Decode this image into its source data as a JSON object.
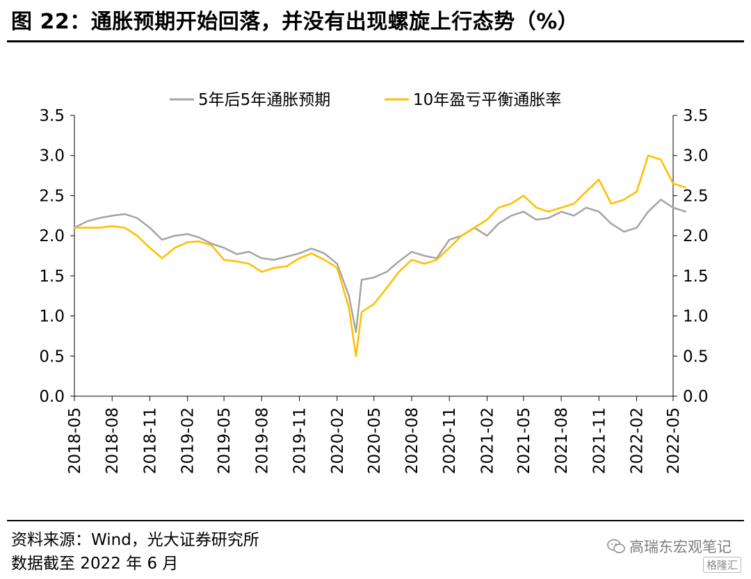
{
  "title": "图 22：通胀预期开始回落，并没有出现螺旋上行态势（%）",
  "source": "资料来源：Wind，光大证券研究所",
  "cutoff": "数据截至 2022 年 6 月",
  "watermark": "高瑞东宏观笔记",
  "watermark_icon": "wechat-icon",
  "watermark_logo": "格隆汇",
  "colors": {
    "series_5y5y": "#a6a6a6",
    "series_breakeven": "#ffc000",
    "axis": "#000000"
  },
  "chart_data": {
    "type": "line",
    "title": "",
    "xlabel": "",
    "ylabel": "",
    "ylim": [
      0,
      3.5
    ],
    "yticks": [
      "0.0",
      "0.5",
      "1.0",
      "1.5",
      "2.0",
      "2.5",
      "3.0",
      "3.5"
    ],
    "y2lim": [
      0,
      3.5
    ],
    "grid": false,
    "legend_position": "top-center",
    "xticks": [
      "2018-05",
      "2018-08",
      "2018-11",
      "2019-02",
      "2019-05",
      "2019-08",
      "2019-11",
      "2020-02",
      "2020-05",
      "2020-08",
      "2020-11",
      "2021-02",
      "2021-05",
      "2021-08",
      "2021-11",
      "2022-02",
      "2022-05"
    ],
    "series": [
      {
        "name": "5年后5年通胀预期",
        "color": "#a6a6a6",
        "x": [
          "2018-05",
          "2018-06",
          "2018-07",
          "2018-08",
          "2018-09",
          "2018-10",
          "2018-11",
          "2018-12",
          "2019-01",
          "2019-02",
          "2019-03",
          "2019-04",
          "2019-05",
          "2019-06",
          "2019-07",
          "2019-08",
          "2019-09",
          "2019-10",
          "2019-11",
          "2019-12",
          "2020-01",
          "2020-02",
          "2020-03",
          "2020-03-18",
          "2020-04",
          "2020-05",
          "2020-06",
          "2020-07",
          "2020-08",
          "2020-09",
          "2020-10",
          "2020-11",
          "2020-12",
          "2021-01",
          "2021-02",
          "2021-03",
          "2021-04",
          "2021-05",
          "2021-06",
          "2021-07",
          "2021-08",
          "2021-09",
          "2021-10",
          "2021-11",
          "2021-12",
          "2022-01",
          "2022-02",
          "2022-03",
          "2022-04",
          "2022-05",
          "2022-06"
        ],
        "values": [
          2.1,
          2.18,
          2.22,
          2.25,
          2.27,
          2.22,
          2.1,
          1.95,
          2.0,
          2.02,
          1.98,
          1.9,
          1.85,
          1.77,
          1.8,
          1.72,
          1.7,
          1.74,
          1.78,
          1.84,
          1.78,
          1.65,
          1.25,
          0.8,
          1.45,
          1.48,
          1.55,
          1.68,
          1.8,
          1.75,
          1.72,
          1.95,
          2.0,
          2.1,
          2.0,
          2.15,
          2.25,
          2.3,
          2.2,
          2.22,
          2.3,
          2.25,
          2.35,
          2.3,
          2.15,
          2.05,
          2.1,
          2.3,
          2.45,
          2.35,
          2.3
        ]
      },
      {
        "name": "10年盈亏平衡通胀率",
        "color": "#ffc000",
        "x": [
          "2018-05",
          "2018-06",
          "2018-07",
          "2018-08",
          "2018-09",
          "2018-10",
          "2018-11",
          "2018-12",
          "2019-01",
          "2019-02",
          "2019-03",
          "2019-04",
          "2019-05",
          "2019-06",
          "2019-07",
          "2019-08",
          "2019-09",
          "2019-10",
          "2019-11",
          "2019-12",
          "2020-01",
          "2020-02",
          "2020-03",
          "2020-03-18",
          "2020-04",
          "2020-05",
          "2020-06",
          "2020-07",
          "2020-08",
          "2020-09",
          "2020-10",
          "2020-11",
          "2020-12",
          "2021-01",
          "2021-02",
          "2021-03",
          "2021-04",
          "2021-05",
          "2021-06",
          "2021-07",
          "2021-08",
          "2021-09",
          "2021-10",
          "2021-11",
          "2021-12",
          "2022-01",
          "2022-02",
          "2022-03",
          "2022-04",
          "2022-05",
          "2022-06"
        ],
        "values": [
          2.1,
          2.1,
          2.1,
          2.12,
          2.1,
          2.0,
          1.85,
          1.72,
          1.85,
          1.92,
          1.93,
          1.88,
          1.7,
          1.68,
          1.65,
          1.55,
          1.6,
          1.62,
          1.72,
          1.78,
          1.7,
          1.6,
          1.1,
          0.5,
          1.05,
          1.15,
          1.35,
          1.55,
          1.7,
          1.65,
          1.7,
          1.85,
          2.0,
          2.1,
          2.2,
          2.35,
          2.4,
          2.5,
          2.35,
          2.3,
          2.35,
          2.4,
          2.55,
          2.7,
          2.4,
          2.45,
          2.55,
          3.0,
          2.95,
          2.65,
          2.6
        ]
      }
    ]
  }
}
